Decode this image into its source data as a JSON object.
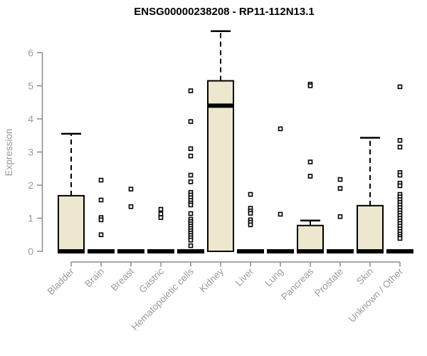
{
  "chart_data": {
    "type": "box",
    "title": "ENSG00000238208 - RP11-112N13.1",
    "ylabel": "Expression",
    "ylim": [
      0,
      6.8
    ],
    "yticks": [
      0,
      1,
      2,
      3,
      4,
      5,
      6
    ],
    "grid": false,
    "legend": "none",
    "categories": [
      "Bladder",
      "Brain",
      "Breast",
      "Gastric",
      "Hematopoietic cells",
      "Kidney",
      "Liver",
      "Lung",
      "Pancreas",
      "Prostate",
      "Skin",
      "Unknown / Other"
    ],
    "series": [
      {
        "category": "Bladder",
        "q1": 0,
        "median": 0,
        "q3": 1.68,
        "whisker_low": 0,
        "whisker_high": 3.55,
        "outliers": []
      },
      {
        "category": "Brain",
        "q1": 0,
        "median": 0,
        "q3": 0,
        "whisker_low": 0,
        "whisker_high": 0,
        "outliers": [
          2.15,
          1.55,
          1.02,
          0.95,
          0.5
        ]
      },
      {
        "category": "Breast",
        "q1": 0,
        "median": 0,
        "q3": 0,
        "whisker_low": 0,
        "whisker_high": 0,
        "outliers": [
          1.88,
          1.35
        ]
      },
      {
        "category": "Gastric",
        "q1": 0,
        "median": 0,
        "q3": 0,
        "whisker_low": 0,
        "whisker_high": 0,
        "outliers": [
          1.27,
          1.13,
          1.02
        ]
      },
      {
        "category": "Hematopoietic cells",
        "q1": 0,
        "median": 0,
        "q3": 0,
        "whisker_low": 0,
        "whisker_high": 0,
        "outliers": [
          4.85,
          3.92,
          3.1,
          2.88,
          2.3,
          2.1,
          1.78,
          1.7,
          1.62,
          1.54,
          1.46,
          1.4,
          1.14,
          0.97,
          0.9,
          0.83,
          0.76,
          0.69,
          0.62,
          0.55,
          0.48,
          0.41,
          0.34,
          0.17
        ]
      },
      {
        "category": "Kidney",
        "q1": 0,
        "median": 4.4,
        "q3": 5.15,
        "whisker_low": 0,
        "whisker_high": 6.65,
        "outliers": []
      },
      {
        "category": "Liver",
        "q1": 0,
        "median": 0,
        "q3": 0,
        "whisker_low": 0,
        "whisker_high": 0,
        "outliers": [
          1.72,
          1.3,
          1.22,
          1.15,
          0.95,
          0.88,
          0.8
        ]
      },
      {
        "category": "Lung",
        "q1": 0,
        "median": 0,
        "q3": 0,
        "whisker_low": 0,
        "whisker_high": 0,
        "outliers": [
          3.7,
          1.12
        ]
      },
      {
        "category": "Pancreas",
        "q1": 0,
        "median": 0,
        "q3": 0.78,
        "whisker_low": 0,
        "whisker_high": 0.93,
        "outliers": [
          5.05,
          5.0,
          2.7,
          2.27
        ]
      },
      {
        "category": "Prostate",
        "q1": 0,
        "median": 0,
        "q3": 0,
        "whisker_low": 0,
        "whisker_high": 0,
        "outliers": [
          2.17,
          1.9,
          1.05
        ]
      },
      {
        "category": "Skin",
        "q1": 0,
        "median": 0,
        "q3": 1.38,
        "whisker_low": 0,
        "whisker_high": 3.43,
        "outliers": []
      },
      {
        "category": "Unknown / Other",
        "q1": 0,
        "median": 0,
        "q3": 0,
        "whisker_low": 0,
        "whisker_high": 0,
        "outliers": [
          4.97,
          3.35,
          3.15,
          2.38,
          2.3,
          2.06,
          1.98,
          1.72,
          1.64,
          1.56,
          1.48,
          1.4,
          1.32,
          1.24,
          1.16,
          1.08,
          1.0,
          0.92,
          0.84,
          0.76,
          0.68,
          0.6,
          0.52,
          0.45,
          0.39
        ]
      }
    ],
    "colors": {
      "box_fill": "#ece7ce",
      "box_stroke": "#000000",
      "median": "#000000",
      "outlier_stroke": "#000000",
      "outlier_fill": "#ffffff",
      "axis": "#8c8c8c",
      "tick_label": "#9b9b9b",
      "title": "#000000"
    }
  }
}
